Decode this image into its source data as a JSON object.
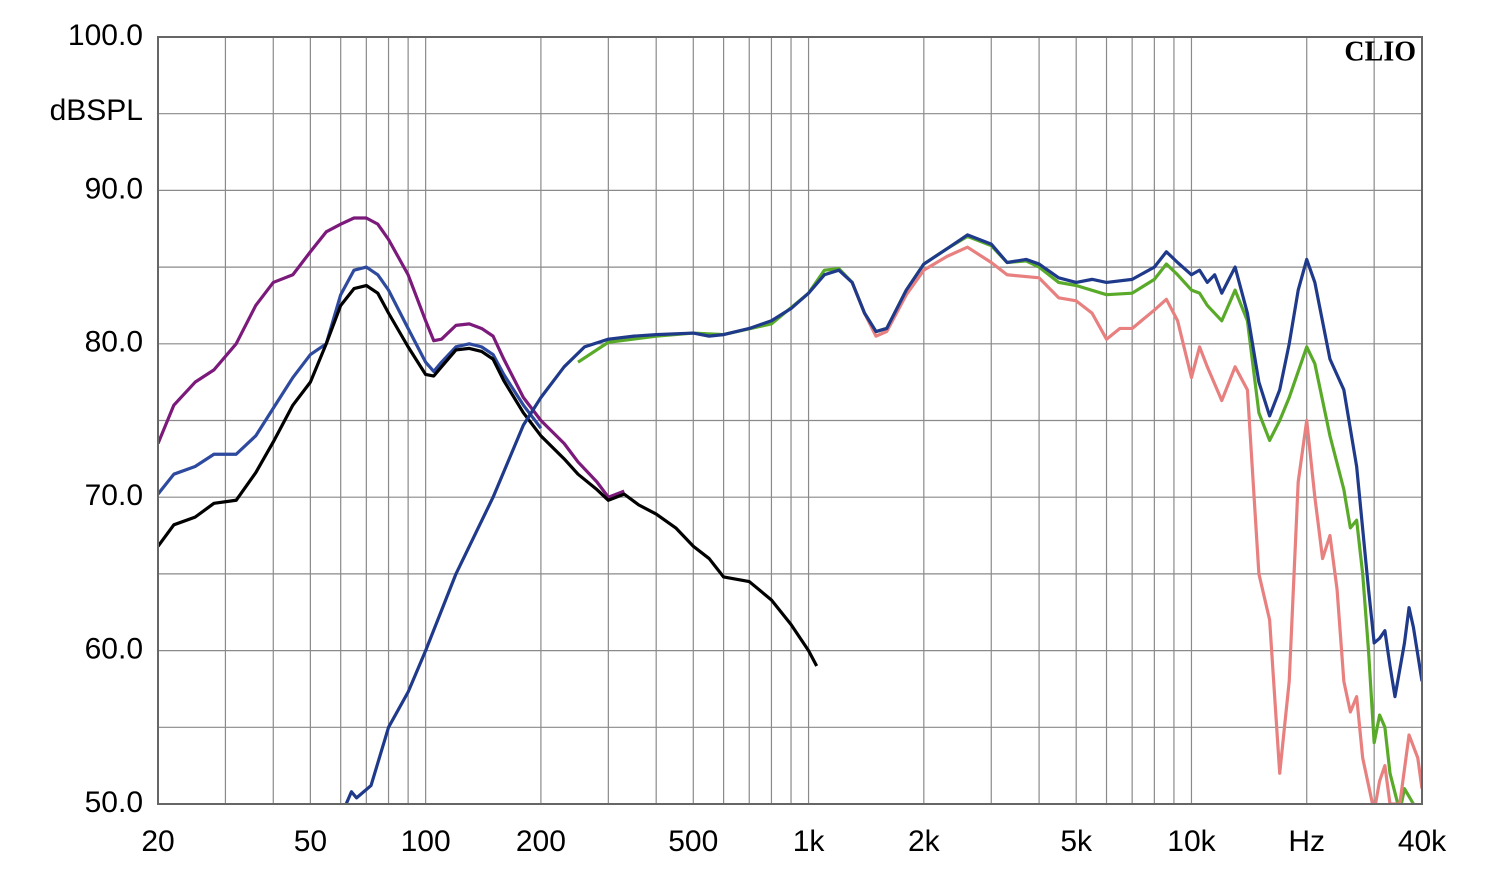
{
  "chart_data": {
    "type": "line",
    "ylabel": "dBSPL",
    "annotation": "CLIO",
    "xscale": "log",
    "grid": true,
    "xlim": [
      20,
      40000
    ],
    "ylim": [
      50,
      100
    ],
    "xticks": [
      20,
      50,
      100,
      200,
      500,
      {
        "value": 1000,
        "label": "1k"
      },
      {
        "value": 2000,
        "label": "2k"
      },
      {
        "value": 5000,
        "label": "5k"
      },
      {
        "value": 10000,
        "label": "10k"
      },
      {
        "value": 20000,
        "label": "Hz"
      },
      {
        "value": 40000,
        "label": "40k"
      }
    ],
    "xminor": [
      30,
      40,
      60,
      70,
      80,
      90,
      300,
      400,
      600,
      700,
      800,
      900,
      3000,
      4000,
      6000,
      7000,
      8000,
      9000,
      30000
    ],
    "yticks": [
      {
        "value": 50,
        "label": "50.0"
      },
      {
        "value": 60,
        "label": "60.0"
      },
      {
        "value": 70,
        "label": "70.0"
      },
      {
        "value": 80,
        "label": "80.0"
      },
      {
        "value": 90,
        "label": "90.0"
      },
      {
        "value": 100,
        "label": "100.0"
      }
    ],
    "yminor": [
      55,
      65,
      75,
      85,
      95
    ],
    "series": [
      {
        "color": "#7b1a7b",
        "x": [
          20,
          22,
          25,
          28,
          32,
          36,
          40,
          45,
          50,
          55,
          60,
          65,
          70,
          75,
          80,
          90,
          100,
          105,
          110,
          120,
          130,
          140,
          150,
          160,
          180,
          200,
          230,
          250,
          280,
          300,
          330
        ],
        "values": [
          73.5,
          76,
          77.5,
          78.3,
          80,
          82.5,
          84,
          84.5,
          86,
          87.3,
          87.8,
          88.2,
          88.2,
          87.8,
          86.8,
          84.5,
          81.5,
          80.2,
          80.3,
          81.2,
          81.3,
          81,
          80.5,
          79,
          76.5,
          75,
          73.5,
          72.3,
          71,
          70,
          70.4
        ]
      },
      {
        "color": "#2e4a9e",
        "x": [
          20,
          22,
          25,
          28,
          32,
          36,
          40,
          45,
          50,
          55,
          60,
          65,
          70,
          75,
          80,
          90,
          100,
          105,
          110,
          120,
          130,
          140,
          150,
          160,
          180,
          200
        ],
        "values": [
          70.2,
          71.5,
          72,
          72.8,
          72.8,
          74,
          75.8,
          77.8,
          79.3,
          80,
          83.2,
          84.8,
          85,
          84.5,
          83.5,
          81,
          78.8,
          78.2,
          78.8,
          79.8,
          80,
          79.8,
          79.3,
          78,
          76,
          74.5
        ]
      },
      {
        "color": "#000000",
        "x": [
          20,
          22,
          25,
          28,
          32,
          36,
          40,
          45,
          50,
          55,
          60,
          65,
          70,
          75,
          80,
          90,
          100,
          105,
          110,
          120,
          130,
          140,
          150,
          160,
          180,
          200,
          230,
          250,
          280,
          300,
          330,
          360,
          400,
          450,
          500,
          550,
          600,
          700,
          800,
          900,
          1000,
          1050
        ],
        "values": [
          66.8,
          68.2,
          68.7,
          69.6,
          69.8,
          71.6,
          73.6,
          76,
          77.5,
          80,
          82.5,
          83.6,
          83.8,
          83.3,
          82,
          79.8,
          78,
          77.9,
          78.5,
          79.6,
          79.7,
          79.5,
          79,
          77.6,
          75.5,
          74,
          72.5,
          71.5,
          70.5,
          69.8,
          70.2,
          69.5,
          68.9,
          68,
          66.8,
          66,
          64.8,
          64.5,
          63.3,
          61.7,
          60,
          59
        ]
      },
      {
        "color": "#5aaa2a",
        "x": [
          250,
          300,
          400,
          500,
          600,
          800,
          1000,
          1100,
          1200,
          1300,
          1400,
          1500,
          1600,
          1800,
          2000,
          2300,
          2600,
          3000,
          3300,
          3700,
          4000,
          4500,
          5000,
          6000,
          7000,
          8000,
          8600,
          9200,
          10000,
          10500,
          11000,
          12000,
          13000,
          14000,
          15000,
          16000,
          17000,
          18000,
          20000,
          21000,
          23000,
          25000,
          26000,
          27000,
          28000,
          29000,
          30000,
          31000,
          32000,
          33000,
          35000,
          36000,
          38000
        ],
        "values": [
          78.8,
          80.1,
          80.5,
          80.7,
          80.6,
          81.3,
          83.3,
          84.8,
          84.9,
          84,
          82,
          80.8,
          81,
          83.5,
          85.2,
          86.2,
          87,
          86.4,
          85.3,
          85.4,
          85,
          84,
          83.8,
          83.2,
          83.3,
          84.2,
          85.2,
          84.5,
          83.5,
          83.3,
          82.5,
          81.5,
          83.5,
          81.5,
          75.5,
          73.7,
          75,
          76.5,
          79.8,
          78.7,
          74,
          70.5,
          68,
          68.5,
          65,
          60,
          54,
          55.8,
          55,
          52,
          49.5,
          51,
          50
        ]
      },
      {
        "color": "#e88080",
        "x": [
          1300,
          1400,
          1500,
          1600,
          1800,
          2000,
          2300,
          2600,
          3000,
          3300,
          4000,
          4500,
          5000,
          5500,
          6000,
          6500,
          7000,
          8000,
          8600,
          9200,
          10000,
          10500,
          11000,
          12000,
          13000,
          14000,
          15000,
          16000,
          17000,
          18000,
          19000,
          20000,
          21000,
          22000,
          23000,
          24000,
          25000,
          26000,
          27000,
          28000,
          30000,
          31000,
          32000,
          33000,
          35000,
          37000,
          39000,
          40000
        ],
        "values": [
          84,
          82,
          80.5,
          80.8,
          83.2,
          84.8,
          85.7,
          86.3,
          85.3,
          84.5,
          84.3,
          83,
          82.8,
          82,
          80.3,
          81,
          81,
          82.2,
          82.9,
          81.5,
          77.8,
          79.8,
          78.5,
          76.3,
          78.5,
          77,
          65,
          62,
          52,
          58,
          71,
          75,
          70,
          66,
          67.5,
          64,
          58,
          56,
          57,
          53,
          49.5,
          51.5,
          52.5,
          50,
          50,
          54.5,
          53,
          51
        ]
      },
      {
        "color": "#1f3a8a",
        "x": [
          62,
          64,
          66,
          72,
          80,
          90,
          100,
          120,
          150,
          180,
          200,
          230,
          260,
          300,
          350,
          400,
          500,
          550,
          600,
          700,
          800,
          900,
          1000,
          1100,
          1200,
          1300,
          1400,
          1500,
          1600,
          1800,
          2000,
          2300,
          2600,
          3000,
          3300,
          3700,
          4000,
          4500,
          5000,
          5500,
          6000,
          7000,
          8000,
          8600,
          9200,
          10000,
          10500,
          11000,
          11500,
          12000,
          13000,
          14000,
          15000,
          16000,
          17000,
          18000,
          19000,
          20000,
          21000,
          23000,
          25000,
          27000,
          29000,
          30000,
          31000,
          32000,
          33000,
          34000,
          36000,
          37000,
          38000,
          40000
        ],
        "values": [
          50,
          50.8,
          50.4,
          51.2,
          55,
          57.3,
          60,
          65,
          70,
          74.7,
          76.5,
          78.5,
          79.8,
          80.3,
          80.5,
          80.6,
          80.7,
          80.5,
          80.6,
          81,
          81.5,
          82.3,
          83.3,
          84.5,
          84.8,
          84,
          82,
          80.8,
          81,
          83.5,
          85.2,
          86.2,
          87.1,
          86.5,
          85.3,
          85.5,
          85.2,
          84.3,
          84,
          84.2,
          84,
          84.2,
          85,
          86,
          85.3,
          84.5,
          84.8,
          84,
          84.5,
          83.3,
          85,
          82,
          77.5,
          75.3,
          77,
          80,
          83.5,
          85.5,
          84,
          79,
          77,
          72,
          64,
          60.5,
          60.8,
          61.3,
          59,
          57,
          60.5,
          62.8,
          61.5,
          58
        ]
      }
    ]
  }
}
